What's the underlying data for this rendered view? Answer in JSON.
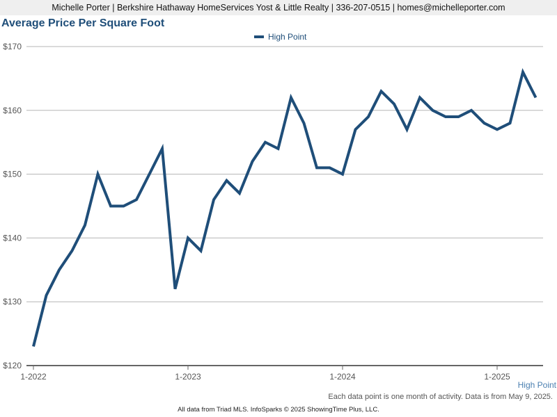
{
  "header": {
    "contact_line": "Michelle Porter | Berkshire Hathaway HomeServices Yost & Little Realty | 336-207-0515 | homes@michelleporter.com"
  },
  "chart_data": {
    "type": "line",
    "title": "Average Price Per Square Foot",
    "x": [
      "2022-01",
      "2022-02",
      "2022-03",
      "2022-04",
      "2022-05",
      "2022-06",
      "2022-07",
      "2022-08",
      "2022-09",
      "2022-10",
      "2022-11",
      "2022-12",
      "2023-01",
      "2023-02",
      "2023-03",
      "2023-04",
      "2023-05",
      "2023-06",
      "2023-07",
      "2023-08",
      "2023-09",
      "2023-10",
      "2023-11",
      "2023-12",
      "2024-01",
      "2024-02",
      "2024-03",
      "2024-04",
      "2024-05",
      "2024-06",
      "2024-07",
      "2024-08",
      "2024-09",
      "2024-10",
      "2024-11",
      "2024-12",
      "2025-01",
      "2025-02",
      "2025-03",
      "2025-04"
    ],
    "series": [
      {
        "name": "High Point",
        "color": "#1f4e79",
        "values": [
          123,
          131,
          135,
          138,
          142,
          150,
          145,
          145,
          146,
          150,
          154,
          132,
          140,
          138,
          146,
          149,
          147,
          152,
          155,
          154,
          162,
          158,
          151,
          151,
          150,
          157,
          159,
          163,
          161,
          157,
          162,
          160,
          159,
          159,
          160,
          158,
          157,
          158,
          166,
          162
        ]
      }
    ],
    "ylim": [
      120,
      170
    ],
    "yticks": [
      "$120",
      "$130",
      "$140",
      "$150",
      "$160",
      "$170"
    ],
    "xticks": [
      {
        "label": "1-2022",
        "x": "2022-01"
      },
      {
        "label": "1-2023",
        "x": "2023-01"
      },
      {
        "label": "1-2024",
        "x": "2024-01"
      },
      {
        "label": "1-2025",
        "x": "2025-01"
      }
    ],
    "grid": true,
    "legend_position": "top-center"
  },
  "series_tag": "High Point",
  "note": "Each data point is one month of activity. Data is from May 9, 2025.",
  "footer": "All data from Triad MLS. InfoSparks © 2025 ShowingTime Plus, LLC."
}
